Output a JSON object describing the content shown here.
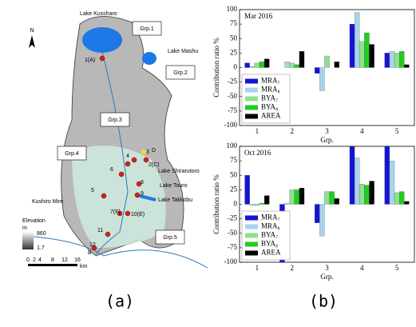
{
  "map": {
    "lakes": [
      "Lake Kussharo",
      "Lake Mashu",
      "Lake Shirarutoro",
      "Lake Touro",
      "Lake Takkobu"
    ],
    "wetland": "Kushiro Mire",
    "groups": [
      "Grp.1",
      "Grp.2",
      "Grp.3",
      "Grp.4",
      "Grp.5"
    ],
    "stations": [
      "1(A)",
      "2(C)",
      "3",
      "4",
      "5",
      "6",
      "7(F)",
      "8",
      "9",
      "10(E)",
      "11",
      "12",
      "B",
      "D"
    ],
    "legend": {
      "title": "Elevation",
      "unit": "m",
      "max": "860",
      "min": "1.7"
    },
    "scale": {
      "ticks": [
        "0",
        "2",
        "4",
        "8",
        "12",
        "16"
      ],
      "unit": "km"
    },
    "north": "N"
  },
  "panel_labels": [
    "(a)",
    "(b)"
  ],
  "chart_data": [
    {
      "type": "bar",
      "title": "Mar 2016",
      "xlabel": "Grp.",
      "ylabel": "Contribution ratio %",
      "categories": [
        "1",
        "2",
        "3",
        "4",
        "5"
      ],
      "ylim": [
        -100,
        100
      ],
      "yticks": [
        -100,
        -75,
        -50,
        -25,
        0,
        25,
        50,
        75,
        100
      ],
      "legend": "lower left",
      "series": [
        {
          "name": "MRA₇",
          "color": "#1414d4",
          "values": [
            8,
            0,
            -10,
            75,
            25
          ]
        },
        {
          "name": "MRA₈",
          "color": "#a9d3e8",
          "values": [
            2,
            10,
            -40,
            95,
            28
          ]
        },
        {
          "name": "BYA₇",
          "color": "#90e090",
          "values": [
            8,
            8,
            20,
            45,
            25
          ]
        },
        {
          "name": "BYA₈",
          "color": "#22cc22",
          "values": [
            10,
            5,
            0,
            60,
            28
          ]
        },
        {
          "name": "AREA",
          "color": "#000000",
          "values": [
            15,
            28,
            10,
            40,
            5
          ]
        }
      ]
    },
    {
      "type": "bar",
      "title": "Oct 2016",
      "xlabel": "Grp.",
      "ylabel": "Contribution ratio %",
      "categories": [
        "1",
        "2",
        "3",
        "4",
        "5"
      ],
      "ylim": [
        -100,
        100
      ],
      "yticks": [
        -100,
        -75,
        -50,
        -25,
        0,
        25,
        50,
        75,
        100
      ],
      "legend": "lower left",
      "series": [
        {
          "name": "MRA₇",
          "color": "#1414d4",
          "values": [
            50,
            -100,
            -32,
            100,
            100
          ]
        },
        {
          "name": "MRA₈",
          "color": "#a9d3e8",
          "values": [
            -2,
            2,
            -55,
            80,
            75
          ]
        },
        {
          "name": "BYA₇",
          "color": "#90e090",
          "values": [
            -2,
            25,
            22,
            35,
            20
          ]
        },
        {
          "name": "BYA₈",
          "color": "#22cc22",
          "values": [
            2,
            25,
            22,
            33,
            22
          ]
        },
        {
          "name": "AREA",
          "color": "#000000",
          "values": [
            15,
            28,
            10,
            40,
            5
          ]
        }
      ]
    }
  ]
}
